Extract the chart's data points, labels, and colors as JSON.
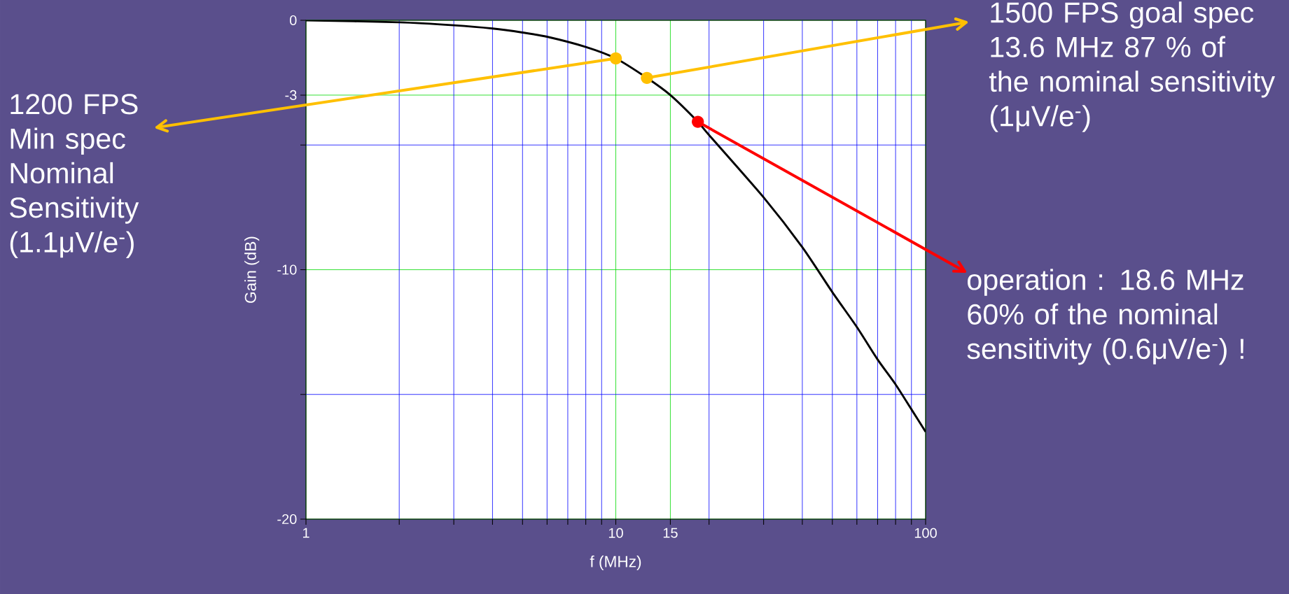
{
  "chart_data": {
    "type": "line",
    "xlabel": "f (MHz)",
    "ylabel": "Gain (dB)",
    "log": "x",
    "grid": true,
    "xlim": [
      1,
      100
    ],
    "ylim": [
      -20,
      0
    ],
    "xticks": [
      1,
      {
        "value": 2,
        "label": null
      },
      {
        "value": 3,
        "label": null
      },
      {
        "value": 4,
        "label": null
      },
      {
        "value": 5,
        "label": null
      },
      {
        "value": 6,
        "label": null
      },
      {
        "value": 7,
        "label": null
      },
      {
        "value": 8,
        "label": null
      },
      {
        "value": 9,
        "label": null
      },
      10,
      15,
      {
        "value": 20,
        "label": null
      },
      {
        "value": 30,
        "label": null
      },
      {
        "value": 40,
        "label": null
      },
      {
        "value": 50,
        "label": null
      },
      {
        "value": 60,
        "label": null
      },
      {
        "value": 70,
        "label": null
      },
      {
        "value": 80,
        "label": null
      },
      {
        "value": 90,
        "label": null
      },
      100
    ],
    "yticks": [
      0,
      -3,
      {
        "value": -5,
        "label": null
      },
      -10,
      {
        "value": -15,
        "label": null
      },
      -20
    ],
    "series": [
      {
        "color": "#000000",
        "x": [
          1,
          2,
          3,
          4,
          5,
          6,
          8,
          10,
          12.6,
          15,
          18.4,
          20,
          30,
          40,
          50,
          60,
          70,
          80,
          90,
          100
        ],
        "values": [
          0,
          -0.08,
          -0.2,
          -0.33,
          -0.49,
          -0.66,
          -1.07,
          -1.53,
          -2.31,
          -3.0,
          -4.07,
          -4.6,
          -7.1,
          -9.1,
          -10.9,
          -12.3,
          -13.6,
          -14.6,
          -15.6,
          -16.5
        ]
      }
    ],
    "annotations": [
      {
        "text": "1200 FPS Min spec Nominal Sensitivity (1.1μV/e$^{-}$)",
        "x": 10,
        "y": -1.53
      },
      {
        "text": "1500 FPS goal spec 13.6 MHz 87 % of the nominal sensitivity (1μV/e$^{-}$)",
        "x": 12.6,
        "y": -2.31
      },
      {
        "text": "operation : 18.6 MHz 60% of the nominal sensitivity (0.6μV/e$^{-}$) !",
        "x": 18.4,
        "y": -4.07
      }
    ]
  }
}
